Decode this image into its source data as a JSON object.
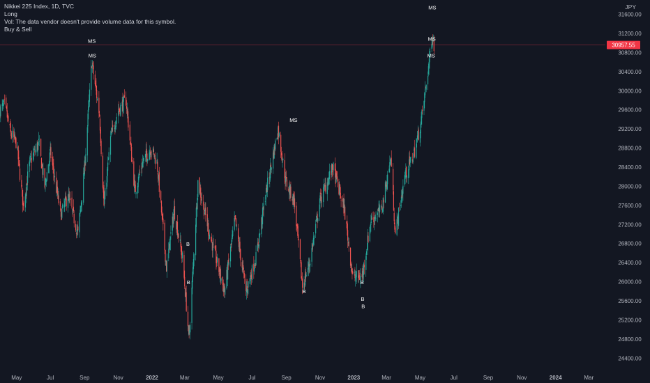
{
  "legend": {
    "symbol": "Nikkei 225 Index, 1D, TVC",
    "line2": "Long",
    "line3": "Vol: The data vendor doesn't provide volume data for this symbol.",
    "line4": "Buy & Sell"
  },
  "currency": "JPY",
  "colors": {
    "background": "#131722",
    "up": "#26a69a",
    "down": "#ef5350",
    "text": "#b2b5be",
    "last_price_bg": "#f23645"
  },
  "chart_data": {
    "type": "candlestick",
    "symbol": "Nikkei 225 Index",
    "interval": "1D",
    "currency": "JPY",
    "ylim": [
      24200,
      31900
    ],
    "y_ticks": [
      24400,
      24800,
      25200,
      25600,
      26000,
      26400,
      26800,
      27200,
      27600,
      28000,
      28400,
      28800,
      29200,
      29600,
      30000,
      30400,
      30800,
      31200,
      31600
    ],
    "y_tick_labels": [
      "24400.00",
      "24800.00",
      "25200.00",
      "25600.00",
      "26000.00",
      "26400.00",
      "26800.00",
      "27200.00",
      "27600.00",
      "28000.00",
      "28400.00",
      "28800.00",
      "29200.00",
      "29600.00",
      "30000.00",
      "30400.00",
      "30800.00",
      "31200.00",
      "31600.00"
    ],
    "x_range": [
      "2021-04-01",
      "2024-03-31"
    ],
    "x_ticks": [
      {
        "date": "2021-05-01",
        "label": "May",
        "bold": false
      },
      {
        "date": "2021-07-01",
        "label": "Jul",
        "bold": false
      },
      {
        "date": "2021-09-01",
        "label": "Sep",
        "bold": false
      },
      {
        "date": "2021-11-01",
        "label": "Nov",
        "bold": false
      },
      {
        "date": "2022-01-01",
        "label": "2022",
        "bold": true
      },
      {
        "date": "2022-03-01",
        "label": "Mar",
        "bold": false
      },
      {
        "date": "2022-05-01",
        "label": "May",
        "bold": false
      },
      {
        "date": "2022-07-01",
        "label": "Jul",
        "bold": false
      },
      {
        "date": "2022-09-01",
        "label": "Sep",
        "bold": false
      },
      {
        "date": "2022-11-01",
        "label": "Nov",
        "bold": false
      },
      {
        "date": "2023-01-01",
        "label": "2023",
        "bold": true
      },
      {
        "date": "2023-03-01",
        "label": "Mar",
        "bold": false
      },
      {
        "date": "2023-05-01",
        "label": "May",
        "bold": false
      },
      {
        "date": "2023-07-01",
        "label": "Jul",
        "bold": false
      },
      {
        "date": "2023-09-01",
        "label": "Sep",
        "bold": false
      },
      {
        "date": "2023-11-01",
        "label": "Nov",
        "bold": false
      },
      {
        "date": "2024-01-01",
        "label": "2024",
        "bold": true
      },
      {
        "date": "2024-03-01",
        "label": "Mar",
        "bold": false
      }
    ],
    "last_price": 30957.55,
    "last_price_label": "30957.55",
    "price_path": [
      [
        "2021-04-01",
        29600
      ],
      [
        "2021-04-10",
        29700
      ],
      [
        "2021-04-20",
        29100
      ],
      [
        "2021-05-01",
        28900
      ],
      [
        "2021-05-13",
        27600
      ],
      [
        "2021-05-25",
        28500
      ],
      [
        "2021-06-10",
        28900
      ],
      [
        "2021-06-21",
        28000
      ],
      [
        "2021-07-01",
        28700
      ],
      [
        "2021-07-20",
        27400
      ],
      [
        "2021-08-02",
        27800
      ],
      [
        "2021-08-20",
        27000
      ],
      [
        "2021-09-01",
        28400
      ],
      [
        "2021-09-14",
        30600
      ],
      [
        "2021-09-28",
        29500
      ],
      [
        "2021-10-06",
        27600
      ],
      [
        "2021-10-18",
        29000
      ],
      [
        "2021-11-01",
        29600
      ],
      [
        "2021-11-15",
        29800
      ],
      [
        "2021-12-01",
        27900
      ],
      [
        "2021-12-15",
        28500
      ],
      [
        "2021-12-30",
        28800
      ],
      [
        "2022-01-10",
        28500
      ],
      [
        "2022-01-27",
        26300
      ],
      [
        "2022-02-10",
        27500
      ],
      [
        "2022-02-25",
        26500
      ],
      [
        "2022-03-09",
        24800
      ],
      [
        "2022-03-25",
        28100
      ],
      [
        "2022-04-15",
        27000
      ],
      [
        "2022-05-12",
        25800
      ],
      [
        "2022-05-31",
        27300
      ],
      [
        "2022-06-20",
        25800
      ],
      [
        "2022-07-08",
        26500
      ],
      [
        "2022-07-25",
        27800
      ],
      [
        "2022-08-17",
        29200
      ],
      [
        "2022-08-31",
        28100
      ],
      [
        "2022-09-15",
        27700
      ],
      [
        "2022-09-30",
        25900
      ],
      [
        "2022-10-13",
        26400
      ],
      [
        "2022-11-01",
        27700
      ],
      [
        "2022-11-24",
        28400
      ],
      [
        "2022-12-15",
        27500
      ],
      [
        "2022-12-30",
        26100
      ],
      [
        "2023-01-16",
        26100
      ],
      [
        "2023-02-01",
        27300
      ],
      [
        "2023-02-20",
        27500
      ],
      [
        "2023-03-09",
        28600
      ],
      [
        "2023-03-17",
        27000
      ],
      [
        "2023-04-03",
        28200
      ],
      [
        "2023-04-20",
        28700
      ],
      [
        "2023-05-02",
        29300
      ],
      [
        "2023-05-15",
        30400
      ],
      [
        "2023-05-23",
        31200
      ],
      [
        "2023-05-26",
        30958
      ]
    ],
    "signals": [
      {
        "date": "2021-09-14",
        "label": "MS",
        "price": 31000
      },
      {
        "date": "2021-09-15",
        "label": "MS",
        "price": 30700
      },
      {
        "date": "2022-03-07",
        "label": "B",
        "price": 26750
      },
      {
        "date": "2022-03-08",
        "label": "B",
        "price": 25950
      },
      {
        "date": "2022-09-14",
        "label": "MS",
        "price": 29350
      },
      {
        "date": "2022-10-03",
        "label": "B",
        "price": 25760
      },
      {
        "date": "2023-01-16",
        "label": "B",
        "price": 25950
      },
      {
        "date": "2023-01-17",
        "label": "B",
        "price": 25600
      },
      {
        "date": "2023-01-18",
        "label": "B",
        "price": 25450
      },
      {
        "date": "2023-05-23",
        "label": "MS",
        "price": 31700
      },
      {
        "date": "2023-05-22",
        "label": "MS",
        "price": 31050
      },
      {
        "date": "2023-05-21",
        "label": "MS",
        "price": 30700
      }
    ]
  }
}
